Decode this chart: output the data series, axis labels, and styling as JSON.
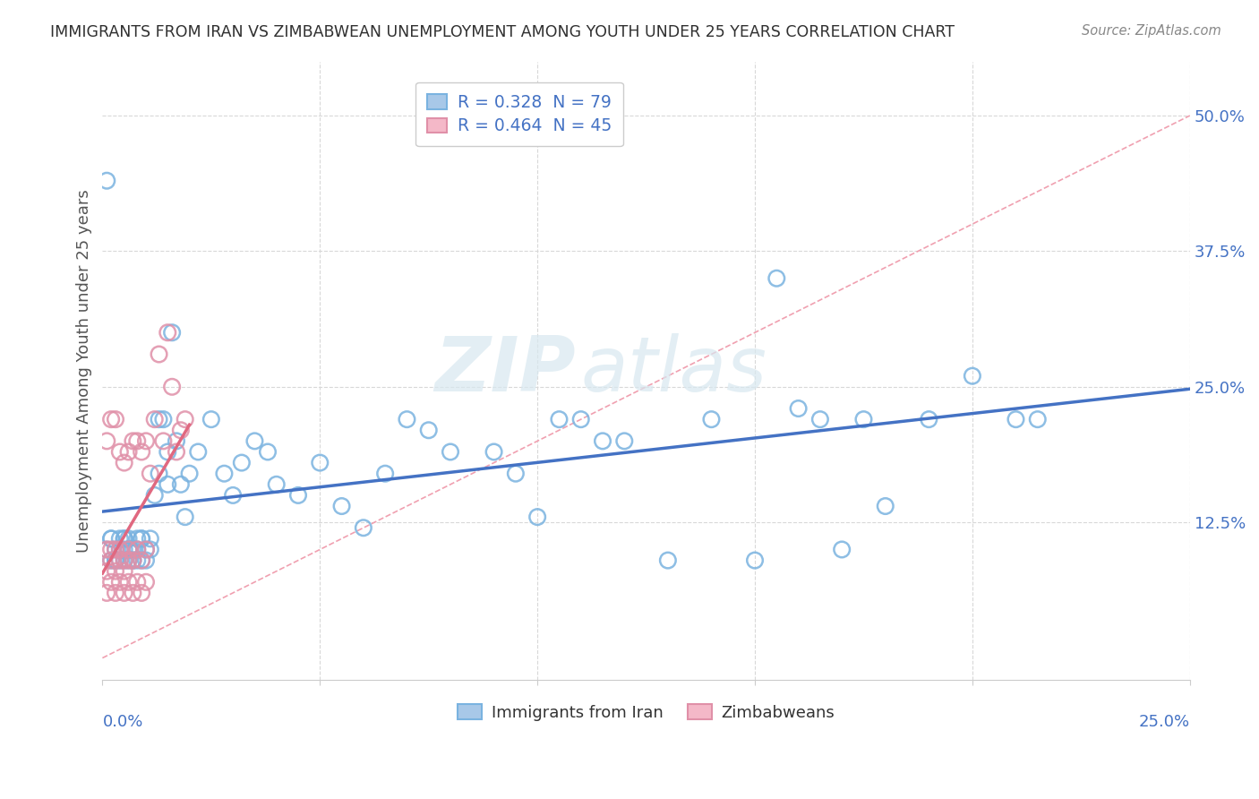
{
  "title": "IMMIGRANTS FROM IRAN VS ZIMBABWEAN UNEMPLOYMENT AMONG YOUTH UNDER 25 YEARS CORRELATION CHART",
  "source": "Source: ZipAtlas.com",
  "ylabel": "Unemployment Among Youth under 25 years",
  "xlim": [
    0.0,
    0.25
  ],
  "ylim": [
    -0.02,
    0.55
  ],
  "ytick_vals": [
    0.0,
    0.125,
    0.25,
    0.375,
    0.5
  ],
  "ytick_labels": [
    "",
    "12.5%",
    "25.0%",
    "37.5%",
    "50.0%"
  ],
  "xtick_labels": [
    "0.0%",
    "",
    "",
    "",
    "",
    "25.0%"
  ],
  "legend_top": [
    {
      "label": "R = 0.328  N = 79",
      "color": "#7ab3e0"
    },
    {
      "label": "R = 0.464  N = 45",
      "color": "#f4a0b0"
    }
  ],
  "legend_top_text_colors": [
    "#4472c4",
    "#4472c4"
  ],
  "legend_bottom": [
    "Immigrants from Iran",
    "Zimbabweans"
  ],
  "watermark": "ZIPatlas",
  "blue_color": "#a8c8e8",
  "blue_edge_color": "#7ab3e0",
  "blue_line_color": "#4472c4",
  "pink_color": "#f4b8c8",
  "pink_edge_color": "#e090a8",
  "pink_line_color": "#e06880",
  "ref_line_color": "#f0a0b0",
  "bg_color": "#ffffff",
  "grid_color": "#d8d8d8",
  "axis_color": "#4472c4",
  "title_color": "#303030",
  "source_color": "#888888",
  "blue_x": [
    0.001,
    0.002,
    0.002,
    0.003,
    0.003,
    0.004,
    0.004,
    0.005,
    0.005,
    0.005,
    0.006,
    0.006,
    0.006,
    0.007,
    0.007,
    0.008,
    0.008,
    0.009,
    0.009,
    0.01,
    0.01,
    0.011,
    0.011,
    0.012,
    0.013,
    0.013,
    0.014,
    0.015,
    0.015,
    0.016,
    0.017,
    0.018,
    0.019,
    0.02,
    0.022,
    0.025,
    0.028,
    0.03,
    0.032,
    0.035,
    0.038,
    0.04,
    0.045,
    0.05,
    0.055,
    0.06,
    0.065,
    0.07,
    0.075,
    0.08,
    0.09,
    0.095,
    0.1,
    0.105,
    0.11,
    0.115,
    0.12,
    0.13,
    0.14,
    0.15,
    0.155,
    0.16,
    0.165,
    0.17,
    0.175,
    0.18,
    0.19,
    0.2,
    0.21,
    0.215,
    0.001,
    0.002,
    0.003,
    0.004,
    0.005,
    0.006,
    0.007,
    0.008,
    0.009
  ],
  "blue_y": [
    0.1,
    0.09,
    0.11,
    0.1,
    0.09,
    0.11,
    0.1,
    0.09,
    0.11,
    0.1,
    0.09,
    0.1,
    0.11,
    0.1,
    0.09,
    0.11,
    0.1,
    0.09,
    0.11,
    0.1,
    0.09,
    0.11,
    0.1,
    0.15,
    0.22,
    0.17,
    0.22,
    0.16,
    0.19,
    0.3,
    0.2,
    0.16,
    0.13,
    0.17,
    0.19,
    0.22,
    0.17,
    0.15,
    0.18,
    0.2,
    0.19,
    0.16,
    0.15,
    0.18,
    0.14,
    0.12,
    0.17,
    0.22,
    0.21,
    0.19,
    0.19,
    0.17,
    0.13,
    0.22,
    0.22,
    0.2,
    0.2,
    0.09,
    0.22,
    0.09,
    0.35,
    0.23,
    0.22,
    0.1,
    0.22,
    0.14,
    0.22,
    0.26,
    0.22,
    0.22,
    0.44,
    0.11,
    0.09,
    0.09,
    0.11,
    0.1,
    0.09,
    0.09,
    0.11
  ],
  "pink_x": [
    0.001,
    0.001,
    0.001,
    0.002,
    0.002,
    0.002,
    0.003,
    0.003,
    0.003,
    0.004,
    0.004,
    0.004,
    0.005,
    0.005,
    0.005,
    0.006,
    0.006,
    0.006,
    0.007,
    0.007,
    0.008,
    0.008,
    0.009,
    0.009,
    0.01,
    0.01,
    0.011,
    0.012,
    0.013,
    0.014,
    0.015,
    0.016,
    0.017,
    0.018,
    0.019,
    0.001,
    0.002,
    0.003,
    0.004,
    0.005,
    0.006,
    0.007,
    0.008,
    0.009,
    0.01
  ],
  "pink_y": [
    0.1,
    0.2,
    0.08,
    0.09,
    0.1,
    0.22,
    0.08,
    0.1,
    0.22,
    0.09,
    0.1,
    0.19,
    0.08,
    0.09,
    0.18,
    0.09,
    0.1,
    0.19,
    0.09,
    0.2,
    0.1,
    0.2,
    0.09,
    0.19,
    0.1,
    0.2,
    0.17,
    0.22,
    0.28,
    0.2,
    0.3,
    0.25,
    0.19,
    0.21,
    0.22,
    0.06,
    0.07,
    0.06,
    0.07,
    0.06,
    0.07,
    0.06,
    0.07,
    0.06,
    0.07
  ],
  "blue_trend_x0": 0.0,
  "blue_trend_x1": 0.25,
  "blue_trend_y0": 0.135,
  "blue_trend_y1": 0.248,
  "pink_trend_x0": 0.0,
  "pink_trend_x1": 0.02,
  "pink_trend_y0": 0.078,
  "pink_trend_y1": 0.215,
  "ref_line_x0": 0.0,
  "ref_line_x1": 0.25,
  "ref_line_y0": 0.0,
  "ref_line_y1": 0.5
}
